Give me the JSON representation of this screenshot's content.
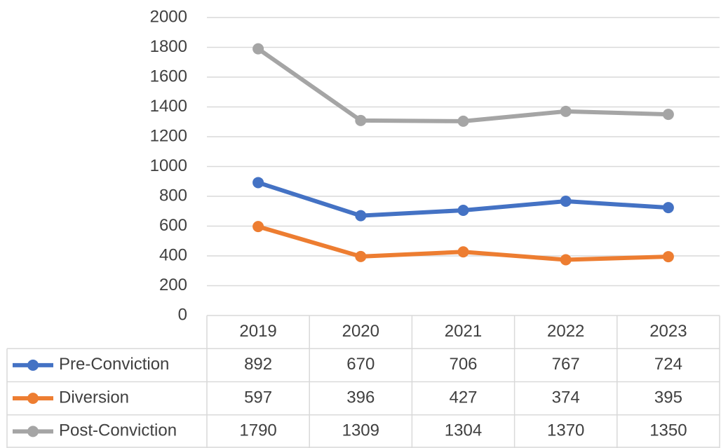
{
  "chart_data": {
    "type": "line",
    "categories": [
      "2019",
      "2020",
      "2021",
      "2022",
      "2023"
    ],
    "series": [
      {
        "name": "Pre-Conviction",
        "color": "#4472c4",
        "values": [
          892,
          670,
          706,
          767,
          724
        ]
      },
      {
        "name": "Diversion",
        "color": "#ed7d31",
        "values": [
          597,
          396,
          427,
          374,
          395
        ]
      },
      {
        "name": "Post-Conviction",
        "color": "#a5a5a5",
        "values": [
          1790,
          1309,
          1304,
          1370,
          1350
        ]
      }
    ],
    "ylim": [
      0,
      2000
    ],
    "yticks": [
      0,
      200,
      400,
      600,
      800,
      1000,
      1200,
      1400,
      1600,
      1800,
      2000
    ],
    "grid": true,
    "data_table": true
  }
}
